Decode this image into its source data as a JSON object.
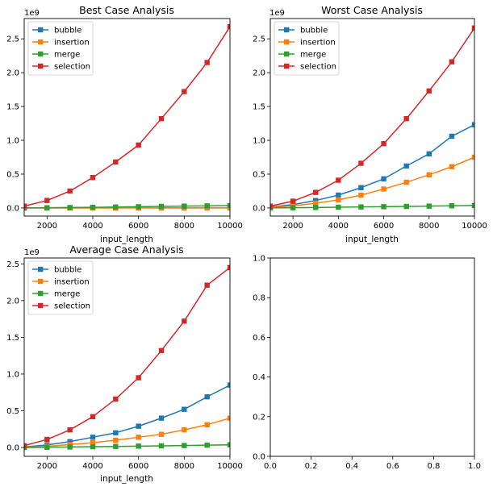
{
  "figure": {
    "background": "#ffffff"
  },
  "colors": {
    "bubble": "#1f77b4",
    "insertion": "#ff7f0e",
    "merge": "#2ca02c",
    "selection": "#d62728"
  },
  "chart_data": [
    {
      "type": "line",
      "title": "Best Case Analysis",
      "xlabel": "input_length",
      "ylabel": "",
      "y_offset_label": "1e9",
      "xlim": [
        1000,
        10000
      ],
      "ylim": [
        -0.12,
        2.8
      ],
      "xticks": [
        2000,
        4000,
        6000,
        8000,
        10000
      ],
      "xtick_labels": [
        "2000",
        "4000",
        "6000",
        "8000",
        "10000"
      ],
      "yticks": [
        0.0,
        0.5,
        1.0,
        1.5,
        2.0,
        2.5
      ],
      "ytick_labels": [
        "0.0",
        "0.5",
        "1.0",
        "1.5",
        "2.0",
        "2.5"
      ],
      "legend": "upper-left",
      "grid": false,
      "x": [
        1000,
        2000,
        3000,
        4000,
        5000,
        6000,
        7000,
        8000,
        9000,
        10000
      ],
      "series": [
        {
          "name": "bubble",
          "color": "#1f77b4",
          "marker": "square",
          "values": [
            0.0,
            0.0,
            0.0,
            0.0,
            0.0,
            0.0,
            0.0,
            0.0,
            0.0,
            0.0
          ]
        },
        {
          "name": "insertion",
          "color": "#ff7f0e",
          "marker": "square",
          "values": [
            0.0,
            0.0,
            0.0,
            0.0,
            0.0,
            0.0,
            0.0,
            0.0,
            0.0,
            0.0
          ]
        },
        {
          "name": "merge",
          "color": "#2ca02c",
          "marker": "square",
          "values": [
            0.0,
            0.003,
            0.006,
            0.01,
            0.014,
            0.018,
            0.023,
            0.027,
            0.031,
            0.035
          ]
        },
        {
          "name": "selection",
          "color": "#d62728",
          "marker": "square",
          "values": [
            0.027,
            0.11,
            0.25,
            0.45,
            0.68,
            0.93,
            1.32,
            1.72,
            2.15,
            2.68
          ]
        }
      ]
    },
    {
      "type": "line",
      "title": "Worst Case Analysis",
      "xlabel": "input_length",
      "ylabel": "",
      "y_offset_label": "1e9",
      "xlim": [
        1000,
        10000
      ],
      "ylim": [
        -0.12,
        2.8
      ],
      "xticks": [
        2000,
        4000,
        6000,
        8000,
        10000
      ],
      "xtick_labels": [
        "2000",
        "4000",
        "6000",
        "8000",
        "10000"
      ],
      "yticks": [
        0.0,
        0.5,
        1.0,
        1.5,
        2.0,
        2.5
      ],
      "ytick_labels": [
        "0.0",
        "0.5",
        "1.0",
        "1.5",
        "2.0",
        "2.5"
      ],
      "legend": "upper-left",
      "grid": false,
      "x": [
        1000,
        2000,
        3000,
        4000,
        5000,
        6000,
        7000,
        8000,
        9000,
        10000
      ],
      "series": [
        {
          "name": "bubble",
          "color": "#1f77b4",
          "marker": "square",
          "values": [
            0.012,
            0.05,
            0.11,
            0.19,
            0.3,
            0.43,
            0.62,
            0.8,
            1.06,
            1.23
          ]
        },
        {
          "name": "insertion",
          "color": "#ff7f0e",
          "marker": "square",
          "values": [
            0.007,
            0.03,
            0.07,
            0.12,
            0.19,
            0.28,
            0.38,
            0.49,
            0.61,
            0.75
          ]
        },
        {
          "name": "merge",
          "color": "#2ca02c",
          "marker": "square",
          "values": [
            0.0,
            0.003,
            0.007,
            0.011,
            0.015,
            0.019,
            0.023,
            0.027,
            0.032,
            0.036
          ]
        },
        {
          "name": "selection",
          "color": "#d62728",
          "marker": "square",
          "values": [
            0.027,
            0.1,
            0.23,
            0.41,
            0.66,
            0.95,
            1.32,
            1.73,
            2.16,
            2.66
          ]
        }
      ]
    },
    {
      "type": "line",
      "title": "Average Case Analysis",
      "xlabel": "input_length",
      "ylabel": "",
      "y_offset_label": "1e9",
      "xlim": [
        1000,
        10000
      ],
      "ylim": [
        -0.12,
        2.58
      ],
      "xticks": [
        2000,
        4000,
        6000,
        8000,
        10000
      ],
      "xtick_labels": [
        "2000",
        "4000",
        "6000",
        "8000",
        "10000"
      ],
      "yticks": [
        0.0,
        0.5,
        1.0,
        1.5,
        2.0,
        2.5
      ],
      "ytick_labels": [
        "0.0",
        "0.5",
        "1.0",
        "1.5",
        "2.0",
        "2.5"
      ],
      "legend": "upper-left",
      "grid": false,
      "x": [
        1000,
        2000,
        3000,
        4000,
        5000,
        6000,
        7000,
        8000,
        9000,
        10000
      ],
      "series": [
        {
          "name": "bubble",
          "color": "#1f77b4",
          "marker": "square",
          "values": [
            0.008,
            0.035,
            0.08,
            0.14,
            0.2,
            0.29,
            0.4,
            0.52,
            0.69,
            0.85
          ]
        },
        {
          "name": "insertion",
          "color": "#ff7f0e",
          "marker": "square",
          "values": [
            0.004,
            0.016,
            0.04,
            0.065,
            0.1,
            0.14,
            0.18,
            0.24,
            0.31,
            0.4
          ]
        },
        {
          "name": "merge",
          "color": "#2ca02c",
          "marker": "square",
          "values": [
            0.0,
            0.003,
            0.007,
            0.011,
            0.015,
            0.019,
            0.022,
            0.027,
            0.032,
            0.037
          ]
        },
        {
          "name": "selection",
          "color": "#d62728",
          "marker": "square",
          "values": [
            0.025,
            0.11,
            0.24,
            0.42,
            0.66,
            0.95,
            1.32,
            1.72,
            2.21,
            2.45
          ]
        }
      ]
    },
    {
      "type": "line",
      "title": "",
      "xlabel": "",
      "ylabel": "",
      "xlim": [
        0.0,
        1.0
      ],
      "ylim": [
        0.0,
        1.0
      ],
      "xticks": [
        0.0,
        0.2,
        0.4,
        0.6,
        0.8,
        1.0
      ],
      "xtick_labels": [
        "0.0",
        "0.2",
        "0.4",
        "0.6",
        "0.8",
        "1.0"
      ],
      "yticks": [
        0.0,
        0.2,
        0.4,
        0.6,
        0.8,
        1.0
      ],
      "ytick_labels": [
        "0.0",
        "0.2",
        "0.4",
        "0.6",
        "0.8",
        "1.0"
      ],
      "grid": false,
      "series": []
    }
  ]
}
